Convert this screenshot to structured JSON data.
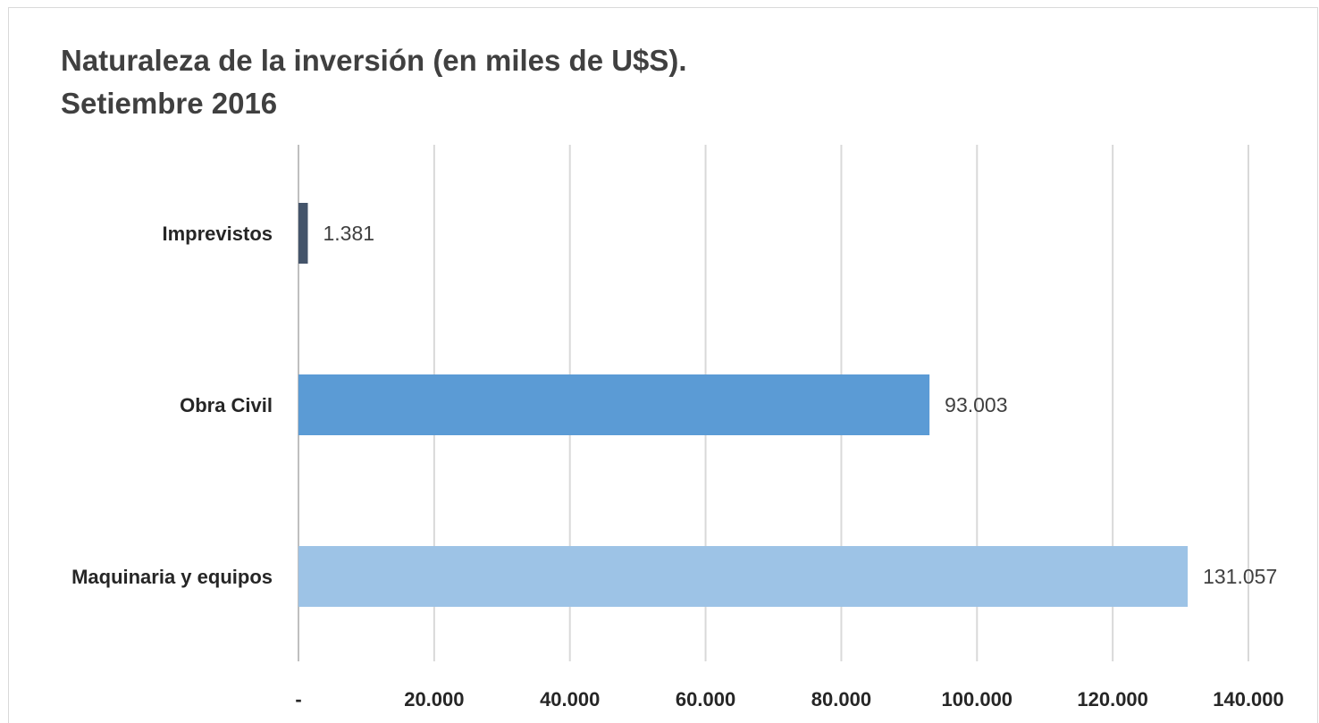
{
  "chart_data": {
    "type": "bar",
    "orientation": "horizontal",
    "title": "Naturaleza de la inversión (en miles de U$S).\nSetiembre 2016",
    "categories": [
      "Imprevistos",
      "Obra Civil",
      "Maquinaria y equipos"
    ],
    "values": [
      1381,
      93003,
      131057
    ],
    "data_labels": [
      "1.381",
      "93.003",
      "131.057"
    ],
    "bar_colors": [
      "#44546a",
      "#5b9bd5",
      "#9dc3e6"
    ],
    "xlim": [
      0,
      140000
    ],
    "xticks": [
      0,
      20000,
      40000,
      60000,
      80000,
      100000,
      120000,
      140000
    ],
    "xtick_labels": [
      "-",
      "20.000",
      "40.000",
      "60.000",
      "80.000",
      "100.000",
      "120.000",
      "140.000"
    ],
    "xlabel": "",
    "ylabel": "",
    "grid": "vertical",
    "legend": "none"
  }
}
